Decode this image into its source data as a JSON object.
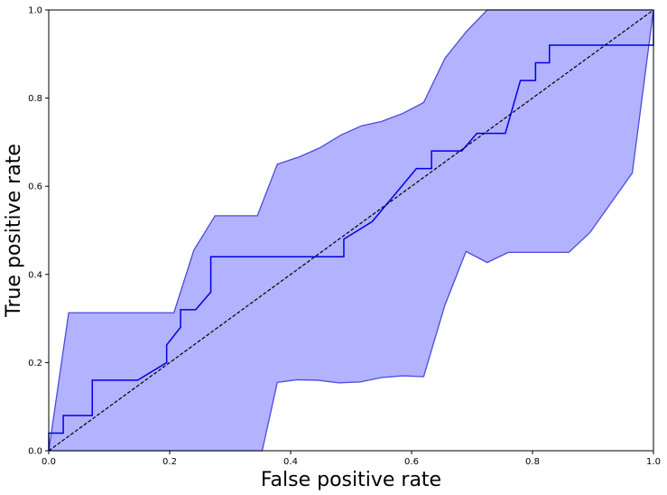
{
  "chart_data": {
    "type": "line",
    "title": "",
    "xlabel": "False positive rate",
    "ylabel": "True positive rate",
    "xlim": [
      0,
      1
    ],
    "ylim": [
      0,
      1
    ],
    "grid": false,
    "x_ticks": [
      0,
      0.2,
      0.4,
      0.6,
      0.8,
      1
    ],
    "x_tick_labels": [
      "0.0",
      "0.2",
      "0.4",
      "0.6",
      "0.8",
      "1.0"
    ],
    "y_ticks": [
      0,
      0.2,
      0.4,
      0.6,
      0.8,
      1
    ],
    "y_tick_labels": [
      "0.0",
      "0.2",
      "0.4",
      "0.6",
      "0.8",
      "1.0"
    ],
    "band": {
      "upper": [
        [
          0,
          0
        ],
        [
          0.033,
          0.313
        ],
        [
          0.207,
          0.313
        ],
        [
          0.24,
          0.455
        ],
        [
          0.275,
          0.533
        ],
        [
          0.345,
          0.533
        ],
        [
          0.378,
          0.65
        ],
        [
          0.415,
          0.667
        ],
        [
          0.448,
          0.687
        ],
        [
          0.483,
          0.716
        ],
        [
          0.517,
          0.737
        ],
        [
          0.55,
          0.747
        ],
        [
          0.585,
          0.765
        ],
        [
          0.62,
          0.79
        ],
        [
          0.655,
          0.89
        ],
        [
          0.69,
          0.95
        ],
        [
          0.725,
          1.0
        ],
        [
          1.0,
          1.0
        ]
      ],
      "lower": [
        [
          0,
          0
        ],
        [
          0.353,
          0
        ],
        [
          0.378,
          0.155
        ],
        [
          0.41,
          0.161
        ],
        [
          0.445,
          0.16
        ],
        [
          0.48,
          0.154
        ],
        [
          0.515,
          0.156
        ],
        [
          0.55,
          0.166
        ],
        [
          0.585,
          0.17
        ],
        [
          0.62,
          0.168
        ],
        [
          0.655,
          0.33
        ],
        [
          0.69,
          0.452
        ],
        [
          0.725,
          0.427
        ],
        [
          0.76,
          0.45
        ],
        [
          0.86,
          0.45
        ],
        [
          0.895,
          0.495
        ],
        [
          0.965,
          0.63
        ],
        [
          1.0,
          1.0
        ]
      ],
      "fill_color": "#b2b2ff",
      "edge_color": "#4b4bdc"
    },
    "series": [
      {
        "points": [
          [
            0,
            0
          ],
          [
            0,
            0.04
          ],
          [
            0.024,
            0.04
          ],
          [
            0.024,
            0.08
          ],
          [
            0.072,
            0.08
          ],
          [
            0.072,
            0.16
          ],
          [
            0.147,
            0.16
          ],
          [
            0.195,
            0.2
          ],
          [
            0.195,
            0.24
          ],
          [
            0.218,
            0.28
          ],
          [
            0.218,
            0.32
          ],
          [
            0.243,
            0.32
          ],
          [
            0.268,
            0.36
          ],
          [
            0.268,
            0.44
          ],
          [
            0.488,
            0.44
          ],
          [
            0.488,
            0.48
          ],
          [
            0.535,
            0.52
          ],
          [
            0.608,
            0.64
          ],
          [
            0.633,
            0.64
          ],
          [
            0.633,
            0.68
          ],
          [
            0.683,
            0.68
          ],
          [
            0.708,
            0.72
          ],
          [
            0.755,
            0.72
          ],
          [
            0.78,
            0.84
          ],
          [
            0.805,
            0.84
          ],
          [
            0.805,
            0.88
          ],
          [
            0.828,
            0.88
          ],
          [
            0.828,
            0.92
          ],
          [
            1.0,
            0.92
          ],
          [
            1.0,
            1.0
          ]
        ],
        "color": "#0000e6",
        "style": "solid"
      },
      {
        "points": [
          [
            0,
            0
          ],
          [
            1,
            1
          ]
        ],
        "color": "#000000",
        "style": "dashed"
      }
    ]
  }
}
